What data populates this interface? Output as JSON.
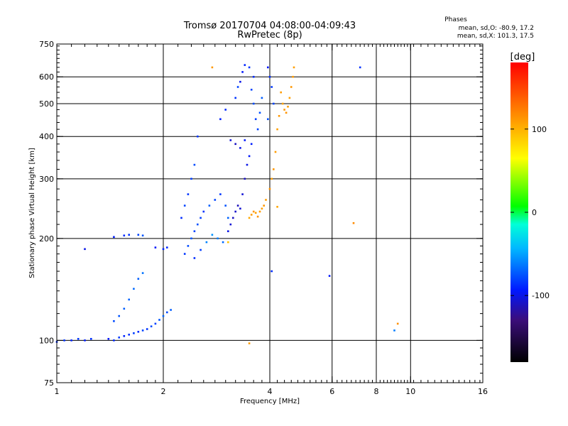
{
  "chart_data": {
    "type": "scatter",
    "title": "Tromsø 20170704 04:08:00-04:09:43",
    "subtitle": "RwPretec (8p)",
    "xlabel": "Frequency [MHz]",
    "ylabel": "Stationary phase Virtual Height [km]",
    "x_scale": "log",
    "y_scale": "log",
    "xlim": [
      1,
      16
    ],
    "ylim": [
      75,
      750
    ],
    "grid": true,
    "x_ticks": [
      1,
      2,
      4,
      6,
      8,
      10,
      16
    ],
    "x_tick_labels": [
      "1",
      "2",
      "4",
      "6",
      "8",
      "10",
      "16"
    ],
    "x_gridlines": [
      2,
      4,
      6,
      8,
      10
    ],
    "y_ticks": [
      75,
      100,
      200,
      300,
      400,
      500,
      600,
      750
    ],
    "y_tick_labels": [
      "75",
      "100",
      "200",
      "300",
      "400",
      "500",
      "600",
      "750"
    ],
    "y_gridlines": [
      100,
      200,
      300,
      400,
      500,
      600
    ],
    "phase_info": {
      "title": "Phases",
      "line_o": "mean, sd,O: -80.9, 17.2",
      "line_x": "mean, sd,X: 101.3, 17.5"
    },
    "colorbar": {
      "label": "[deg]",
      "range": [
        -180,
        180
      ],
      "ticks": [
        100,
        0,
        -100
      ],
      "tick_labels": [
        "100",
        "0",
        "-100"
      ]
    },
    "series": [
      {
        "values": [
          [
            1.0,
            99,
            -88
          ],
          [
            1.05,
            100,
            -85
          ],
          [
            1.1,
            100,
            -90
          ],
          [
            1.15,
            101,
            -84
          ],
          [
            1.2,
            100,
            -92
          ],
          [
            1.25,
            101,
            -86
          ],
          [
            1.4,
            101,
            -95
          ],
          [
            1.45,
            100,
            -88
          ],
          [
            1.5,
            102,
            -83
          ],
          [
            1.55,
            103,
            -90
          ],
          [
            1.6,
            104,
            -86
          ],
          [
            1.65,
            105,
            -82
          ],
          [
            1.7,
            106,
            -88
          ],
          [
            1.75,
            107,
            -80
          ],
          [
            1.8,
            108,
            -85
          ],
          [
            1.85,
            110,
            -78
          ],
          [
            1.9,
            112,
            -82
          ],
          [
            1.95,
            115,
            -75
          ],
          [
            2.0,
            118,
            -70
          ],
          [
            2.05,
            121,
            -78
          ],
          [
            2.1,
            123,
            -72
          ],
          [
            1.45,
            114,
            -78
          ],
          [
            1.5,
            118,
            -75
          ],
          [
            1.55,
            124,
            -72
          ],
          [
            1.6,
            132,
            -70
          ],
          [
            1.65,
            142,
            -68
          ],
          [
            1.7,
            152,
            -72
          ],
          [
            1.75,
            158,
            -65
          ],
          [
            1.45,
            202,
            -92
          ],
          [
            1.55,
            204,
            -88
          ],
          [
            1.6,
            205,
            -85
          ],
          [
            1.7,
            205,
            -80
          ],
          [
            1.75,
            204,
            -74
          ],
          [
            1.9,
            188,
            -95
          ],
          [
            2.0,
            186,
            -90
          ],
          [
            2.05,
            188,
            -88
          ],
          [
            1.2,
            186,
            -100
          ],
          [
            2.25,
            230,
            -88
          ],
          [
            2.3,
            250,
            -80
          ],
          [
            2.35,
            270,
            -85
          ],
          [
            2.4,
            300,
            -82
          ],
          [
            2.45,
            330,
            -78
          ],
          [
            2.5,
            400,
            -84
          ],
          [
            2.3,
            180,
            -84
          ],
          [
            2.35,
            190,
            -78
          ],
          [
            2.4,
            200,
            -74
          ],
          [
            2.45,
            210,
            -80
          ],
          [
            2.5,
            220,
            -76
          ],
          [
            2.55,
            230,
            -82
          ],
          [
            2.6,
            240,
            -86
          ],
          [
            2.7,
            250,
            -72
          ],
          [
            2.8,
            260,
            -80
          ],
          [
            2.9,
            270,
            -84
          ],
          [
            3.0,
            250,
            -75
          ],
          [
            3.05,
            230,
            -70
          ],
          [
            2.45,
            175,
            -88
          ],
          [
            2.55,
            185,
            -82
          ],
          [
            2.65,
            195,
            -60
          ],
          [
            2.75,
            205,
            -55
          ],
          [
            2.85,
            200,
            -62
          ],
          [
            2.95,
            195,
            -68
          ],
          [
            3.05,
            210,
            -100
          ],
          [
            3.1,
            220,
            -105
          ],
          [
            3.15,
            230,
            -110
          ],
          [
            3.2,
            240,
            -108
          ],
          [
            3.25,
            250,
            -112
          ],
          [
            3.3,
            245,
            -106
          ],
          [
            3.35,
            270,
            -105
          ],
          [
            3.4,
            300,
            -110
          ],
          [
            3.45,
            330,
            -100
          ],
          [
            3.5,
            350,
            -95
          ],
          [
            3.55,
            380,
            -92
          ],
          [
            3.1,
            390,
            -105
          ],
          [
            3.2,
            380,
            -110
          ],
          [
            3.3,
            370,
            -100
          ],
          [
            3.4,
            390,
            -95
          ],
          [
            3.3,
            580,
            -100
          ],
          [
            3.35,
            620,
            -95
          ],
          [
            3.4,
            650,
            -90
          ],
          [
            3.5,
            640,
            -85
          ],
          [
            3.6,
            600,
            -88
          ],
          [
            3.55,
            550,
            -80
          ],
          [
            3.6,
            500,
            -78
          ],
          [
            3.65,
            450,
            -82
          ],
          [
            3.7,
            420,
            -80
          ],
          [
            3.75,
            470,
            -76
          ],
          [
            3.8,
            520,
            -72
          ],
          [
            3.95,
            640,
            -95
          ],
          [
            4.0,
            600,
            -88
          ],
          [
            4.05,
            560,
            -84
          ],
          [
            4.1,
            500,
            -80
          ],
          [
            3.95,
            450,
            -76
          ],
          [
            3.0,
            480,
            -88
          ],
          [
            2.9,
            450,
            -92
          ],
          [
            3.2,
            520,
            -85
          ],
          [
            3.25,
            560,
            -80
          ],
          [
            7.2,
            640,
            -85
          ],
          [
            5.9,
            155,
            -95
          ],
          [
            9.0,
            107,
            -62
          ],
          [
            4.05,
            160,
            -88
          ]
        ]
      },
      {
        "values": [
          [
            3.5,
            230,
            105
          ],
          [
            3.55,
            235,
            110
          ],
          [
            3.6,
            240,
            112
          ],
          [
            3.65,
            238,
            108
          ],
          [
            3.7,
            232,
            114
          ],
          [
            3.75,
            240,
            110
          ],
          [
            3.8,
            245,
            108
          ],
          [
            3.85,
            250,
            112
          ],
          [
            3.9,
            260,
            110
          ],
          [
            4.0,
            280,
            114
          ],
          [
            4.05,
            300,
            110
          ],
          [
            4.1,
            320,
            112
          ],
          [
            4.15,
            360,
            110
          ],
          [
            4.2,
            420,
            108
          ],
          [
            4.25,
            460,
            112
          ],
          [
            4.3,
            540,
            110
          ],
          [
            4.35,
            500,
            108
          ],
          [
            4.4,
            480,
            112
          ],
          [
            4.45,
            470,
            114
          ],
          [
            4.5,
            490,
            110
          ],
          [
            4.55,
            520,
            108
          ],
          [
            4.6,
            560,
            112
          ],
          [
            4.65,
            600,
            110
          ],
          [
            4.68,
            640,
            108
          ],
          [
            3.05,
            195,
            92
          ],
          [
            2.75,
            640,
            112
          ],
          [
            9.2,
            112,
            115
          ],
          [
            6.9,
            222,
            118
          ],
          [
            4.2,
            248,
            105
          ],
          [
            3.5,
            98,
            110
          ]
        ]
      }
    ]
  }
}
